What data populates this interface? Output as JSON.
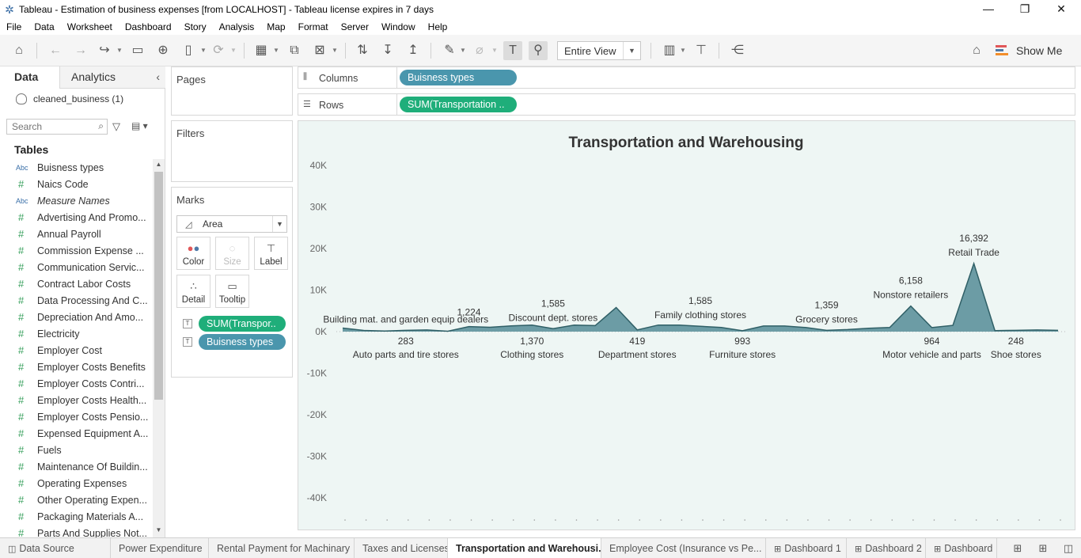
{
  "window": {
    "title": "Tableau - Estimation of business expenses [from LOCALHOST] - Tableau license expires in 7 days",
    "minimize": "—",
    "restore": "❐",
    "close": "✕"
  },
  "menu": [
    "File",
    "Data",
    "Worksheet",
    "Dashboard",
    "Story",
    "Analysis",
    "Map",
    "Format",
    "Server",
    "Window",
    "Help"
  ],
  "toolbar": {
    "fit_value": "Entire View",
    "show_me_label": "Show Me"
  },
  "data_pane": {
    "tab_data": "Data",
    "tab_analytics": "Analytics",
    "datasource": "cleaned_business (1)",
    "search_placeholder": "Search",
    "tables_title": "Tables",
    "fields": [
      {
        "type": "Abc",
        "name": "Buisness types",
        "italic": false
      },
      {
        "type": "#",
        "name": "Naics Code",
        "italic": false
      },
      {
        "type": "Abc",
        "name": "Measure Names",
        "italic": true
      },
      {
        "type": "#",
        "name": "Advertising And Promo...",
        "italic": false
      },
      {
        "type": "#",
        "name": "Annual Payroll",
        "italic": false
      },
      {
        "type": "#",
        "name": "Commission Expense ...",
        "italic": false
      },
      {
        "type": "#",
        "name": "Communication Servic...",
        "italic": false
      },
      {
        "type": "#",
        "name": "Contract Labor Costs",
        "italic": false
      },
      {
        "type": "#",
        "name": "Data Processing And C...",
        "italic": false
      },
      {
        "type": "#",
        "name": "Depreciation And Amo...",
        "italic": false
      },
      {
        "type": "#",
        "name": "Electricity",
        "italic": false
      },
      {
        "type": "#",
        "name": "Employer Cost",
        "italic": false
      },
      {
        "type": "#",
        "name": "Employer Costs Benefits",
        "italic": false
      },
      {
        "type": "#",
        "name": "Employer Costs Contri...",
        "italic": false
      },
      {
        "type": "#",
        "name": "Employer Costs Health...",
        "italic": false
      },
      {
        "type": "#",
        "name": "Employer Costs Pensio...",
        "italic": false
      },
      {
        "type": "#",
        "name": "Expensed Equipment A...",
        "italic": false
      },
      {
        "type": "#",
        "name": "Fuels",
        "italic": false
      },
      {
        "type": "#",
        "name": "Maintenance Of Buildin...",
        "italic": false
      },
      {
        "type": "#",
        "name": "Operating Expenses",
        "italic": false
      },
      {
        "type": "#",
        "name": "Other Operating Expen...",
        "italic": false
      },
      {
        "type": "#",
        "name": "Packaging Materials A...",
        "italic": false
      },
      {
        "type": "#",
        "name": "Parts And Supplies Not...",
        "italic": false
      }
    ]
  },
  "cards": {
    "pages": "Pages",
    "filters": "Filters",
    "marks": "Marks",
    "mark_type": "Area",
    "mark_buttons": {
      "color": "Color",
      "size": "Size",
      "label": "Label",
      "detail": "Detail",
      "tooltip": "Tooltip"
    },
    "mark_pills": [
      "SUM(Transpor..",
      "Buisness types"
    ]
  },
  "shelves": {
    "columns_label": "Columns",
    "columns_pill": "Buisness types",
    "rows_label": "Rows",
    "rows_pill": "SUM(Transportation .."
  },
  "chart_data": {
    "type": "area",
    "title": "Transportation and Warehousing",
    "ylim": [
      -45000,
      40000
    ],
    "y_ticks": [
      40000,
      30000,
      20000,
      10000,
      0,
      -10000,
      -20000,
      -30000,
      -40000
    ],
    "y_tick_labels": [
      "40K",
      "30K",
      "20K",
      "10K",
      "0K",
      "-10K",
      "-20K",
      "-30K",
      "-40K"
    ],
    "values": [
      850,
      283,
      150,
      300,
      400,
      100,
      1224,
      1050,
      1370,
      1585,
      700,
      1585,
      1440,
      5800,
      419,
      1585,
      1585,
      1300,
      993,
      200,
      1359,
      1359,
      993,
      300,
      500,
      800,
      1000,
      6158,
      964,
      1500,
      16392,
      248,
      300,
      400,
      300
    ],
    "annotations": [
      {
        "x": 3,
        "value": "",
        "label": "Building mat. and garden equip dealers",
        "pos": "above"
      },
      {
        "x": 6,
        "value": "1,224",
        "label": "",
        "pos": "above"
      },
      {
        "x": 3,
        "value": "283",
        "label": "Auto parts and tire stores",
        "pos": "below"
      },
      {
        "x": 9,
        "value": "1,370",
        "label": "Clothing stores",
        "pos": "below"
      },
      {
        "x": 10,
        "value": "1,585",
        "label": "Discount dept. stores",
        "pos": "above"
      },
      {
        "x": 14,
        "value": "419",
        "label": "Department stores",
        "pos": "below"
      },
      {
        "x": 17,
        "value": "1,585",
        "label": "Family clothing stores",
        "pos": "above"
      },
      {
        "x": 19,
        "value": "993",
        "label": "Furniture stores",
        "pos": "below"
      },
      {
        "x": 23,
        "value": "1,359",
        "label": "Grocery stores",
        "pos": "above"
      },
      {
        "x": 27,
        "value": "6,158",
        "label": "Nonstore retailers",
        "pos": "above"
      },
      {
        "x": 28,
        "value": "964",
        "label": "Motor vehicle and parts",
        "pos": "below"
      },
      {
        "x": 30,
        "value": "16,392",
        "label": "Retail Trade",
        "pos": "above"
      },
      {
        "x": 32,
        "value": "248",
        "label": "Shoe stores",
        "pos": "below"
      }
    ],
    "fill_color": "#6c9ca5",
    "line_color": "#2f5f66"
  },
  "sheet_tabs": [
    {
      "label": "Data Source",
      "active": false,
      "icon": "data-source-icon"
    },
    {
      "label": "Power Expenditure",
      "active": false,
      "icon": ""
    },
    {
      "label": "Rental Payment for Machinary",
      "active": false,
      "icon": ""
    },
    {
      "label": "Taxes and Licenses",
      "active": false,
      "icon": ""
    },
    {
      "label": "Transportation and Warehousi...",
      "active": true,
      "icon": ""
    },
    {
      "label": "Employee Cost (Insurance vs Pe...",
      "active": false,
      "icon": ""
    },
    {
      "label": "Dashboard 1",
      "active": false,
      "icon": "dashboard-icon"
    },
    {
      "label": "Dashboard 2",
      "active": false,
      "icon": "dashboard-icon"
    },
    {
      "label": "Dashboard",
      "active": false,
      "icon": "dashboard-icon"
    }
  ]
}
